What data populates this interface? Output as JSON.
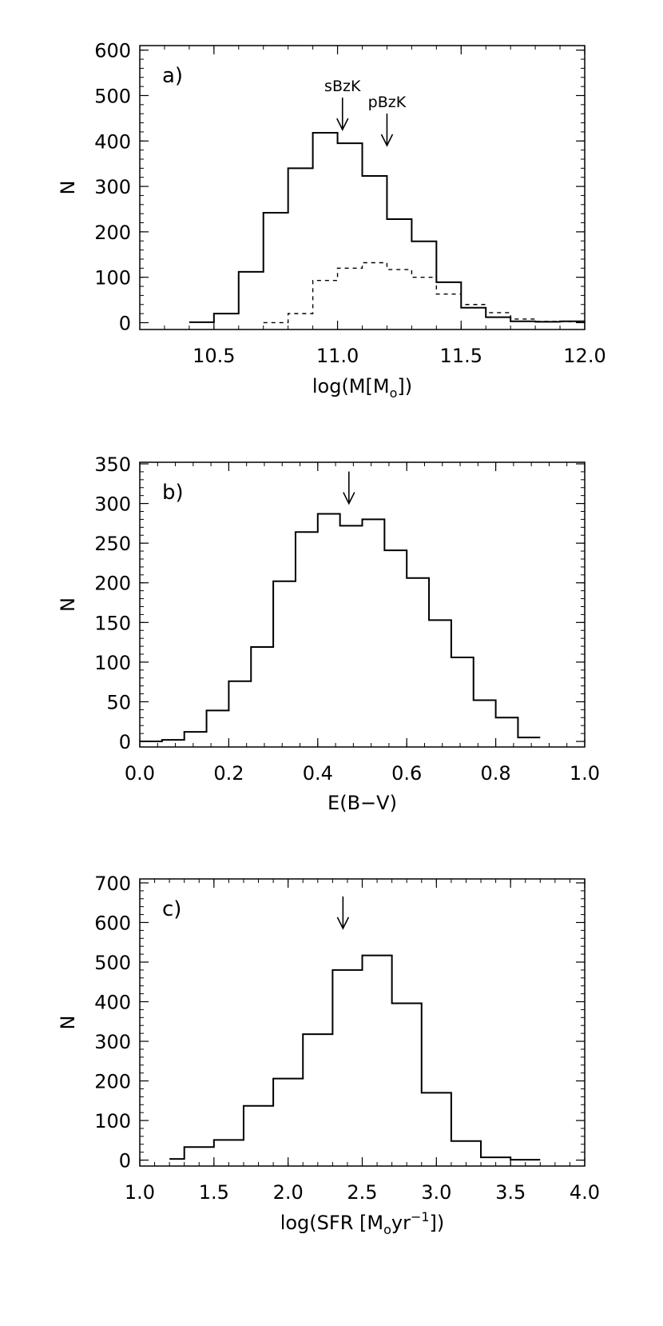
{
  "chart_data": [
    {
      "type": "histogram",
      "panel_label": "a)",
      "xlabel": "log(M[M",
      "xlabel_sub": "o",
      "xlabel_tail": "])",
      "ylabel": "N",
      "xlim": [
        10.2,
        12.0
      ],
      "ylim": [
        -15,
        610
      ],
      "xticks": [
        {
          "value": 10.5,
          "label": "10.5"
        },
        {
          "value": 11.0,
          "label": "11.0"
        },
        {
          "value": 11.5,
          "label": "11.5"
        },
        {
          "value": 12.0,
          "label": "12.0"
        }
      ],
      "yticks": [
        {
          "value": 0,
          "label": "0"
        },
        {
          "value": 100,
          "label": "100"
        },
        {
          "value": 200,
          "label": "200"
        },
        {
          "value": 300,
          "label": "300"
        },
        {
          "value": 400,
          "label": "400"
        },
        {
          "value": 500,
          "label": "500"
        },
        {
          "value": 600,
          "label": "600"
        }
      ],
      "series": [
        {
          "style": "solid",
          "bin_edges": [
            10.4,
            10.5,
            10.6,
            10.7,
            10.8,
            10.9,
            11.0,
            11.1,
            11.2,
            11.3,
            11.4,
            11.5,
            11.6,
            11.7,
            11.8,
            11.9,
            12.0
          ],
          "counts": [
            1,
            20,
            112,
            242,
            340,
            418,
            395,
            323,
            228,
            179,
            89,
            33,
            12,
            3,
            2,
            3
          ]
        },
        {
          "style": "dotted",
          "bin_edges": [
            10.7,
            10.8,
            10.9,
            11.0,
            11.1,
            11.2,
            11.3,
            11.4,
            11.5,
            11.6,
            11.7,
            11.8,
            11.9,
            12.0
          ],
          "counts": [
            0,
            20,
            93,
            120,
            132,
            117,
            100,
            63,
            40,
            22,
            8,
            3,
            2
          ]
        }
      ],
      "annotations": [
        {
          "text": "sBzK",
          "x": 11.02,
          "arrow_tip": 425
        },
        {
          "text": "pBzK",
          "x": 11.2,
          "arrow_tip": 390
        }
      ]
    },
    {
      "type": "histogram",
      "panel_label": "b)",
      "xlabel": "E(B−V)",
      "ylabel": "N",
      "xlim": [
        0.0,
        1.0
      ],
      "ylim": [
        -7,
        352
      ],
      "xticks": [
        {
          "value": 0.0,
          "label": "0.0"
        },
        {
          "value": 0.2,
          "label": "0.2"
        },
        {
          "value": 0.4,
          "label": "0.4"
        },
        {
          "value": 0.6,
          "label": "0.6"
        },
        {
          "value": 0.8,
          "label": "0.8"
        },
        {
          "value": 1.0,
          "label": "1.0"
        }
      ],
      "yticks": [
        {
          "value": 0,
          "label": "0"
        },
        {
          "value": 50,
          "label": "50"
        },
        {
          "value": 100,
          "label": "100"
        },
        {
          "value": 150,
          "label": "150"
        },
        {
          "value": 200,
          "label": "200"
        },
        {
          "value": 250,
          "label": "250"
        },
        {
          "value": 300,
          "label": "300"
        },
        {
          "value": 350,
          "label": "350"
        }
      ],
      "series": [
        {
          "style": "solid",
          "bin_edges": [
            0.0,
            0.05,
            0.1,
            0.15,
            0.2,
            0.25,
            0.3,
            0.35,
            0.4,
            0.45,
            0.5,
            0.55,
            0.6,
            0.65,
            0.7,
            0.75,
            0.8,
            0.85,
            0.9
          ],
          "counts": [
            0,
            2,
            12,
            39,
            76,
            119,
            202,
            264,
            287,
            272,
            280,
            241,
            206,
            153,
            106,
            52,
            30,
            5
          ]
        }
      ],
      "annotations": [
        {
          "text": "",
          "x": 0.47,
          "arrow_tip": 300
        }
      ]
    },
    {
      "type": "histogram",
      "panel_label": "c)",
      "xlabel": "log(SFR [M",
      "xlabel_sub": "o",
      "xlabel_mid": "yr",
      "xlabel_sup": "−1",
      "xlabel_tail": "])",
      "ylabel": "N",
      "xlim": [
        1.0,
        4.0
      ],
      "ylim": [
        -15,
        710
      ],
      "xticks": [
        {
          "value": 1.0,
          "label": "1.0"
        },
        {
          "value": 1.5,
          "label": "1.5"
        },
        {
          "value": 2.0,
          "label": "2.0"
        },
        {
          "value": 2.5,
          "label": "2.5"
        },
        {
          "value": 3.0,
          "label": "3.0"
        },
        {
          "value": 3.5,
          "label": "3.5"
        },
        {
          "value": 4.0,
          "label": "4.0"
        }
      ],
      "yticks": [
        {
          "value": 0,
          "label": "0"
        },
        {
          "value": 100,
          "label": "100"
        },
        {
          "value": 200,
          "label": "200"
        },
        {
          "value": 300,
          "label": "300"
        },
        {
          "value": 400,
          "label": "400"
        },
        {
          "value": 500,
          "label": "500"
        },
        {
          "value": 600,
          "label": "600"
        },
        {
          "value": 700,
          "label": "700"
        }
      ],
      "series": [
        {
          "style": "solid",
          "bin_edges": [
            1.2,
            1.3,
            1.5,
            1.7,
            1.9,
            2.1,
            2.3,
            2.5,
            2.7,
            2.9,
            3.1,
            3.3,
            3.5,
            3.7
          ],
          "counts": [
            3,
            33,
            51,
            137,
            206,
            318,
            480,
            517,
            396,
            170,
            48,
            7,
            1
          ]
        }
      ],
      "annotations": [
        {
          "text": "",
          "x": 2.37,
          "arrow_tip": 585
        }
      ]
    }
  ]
}
